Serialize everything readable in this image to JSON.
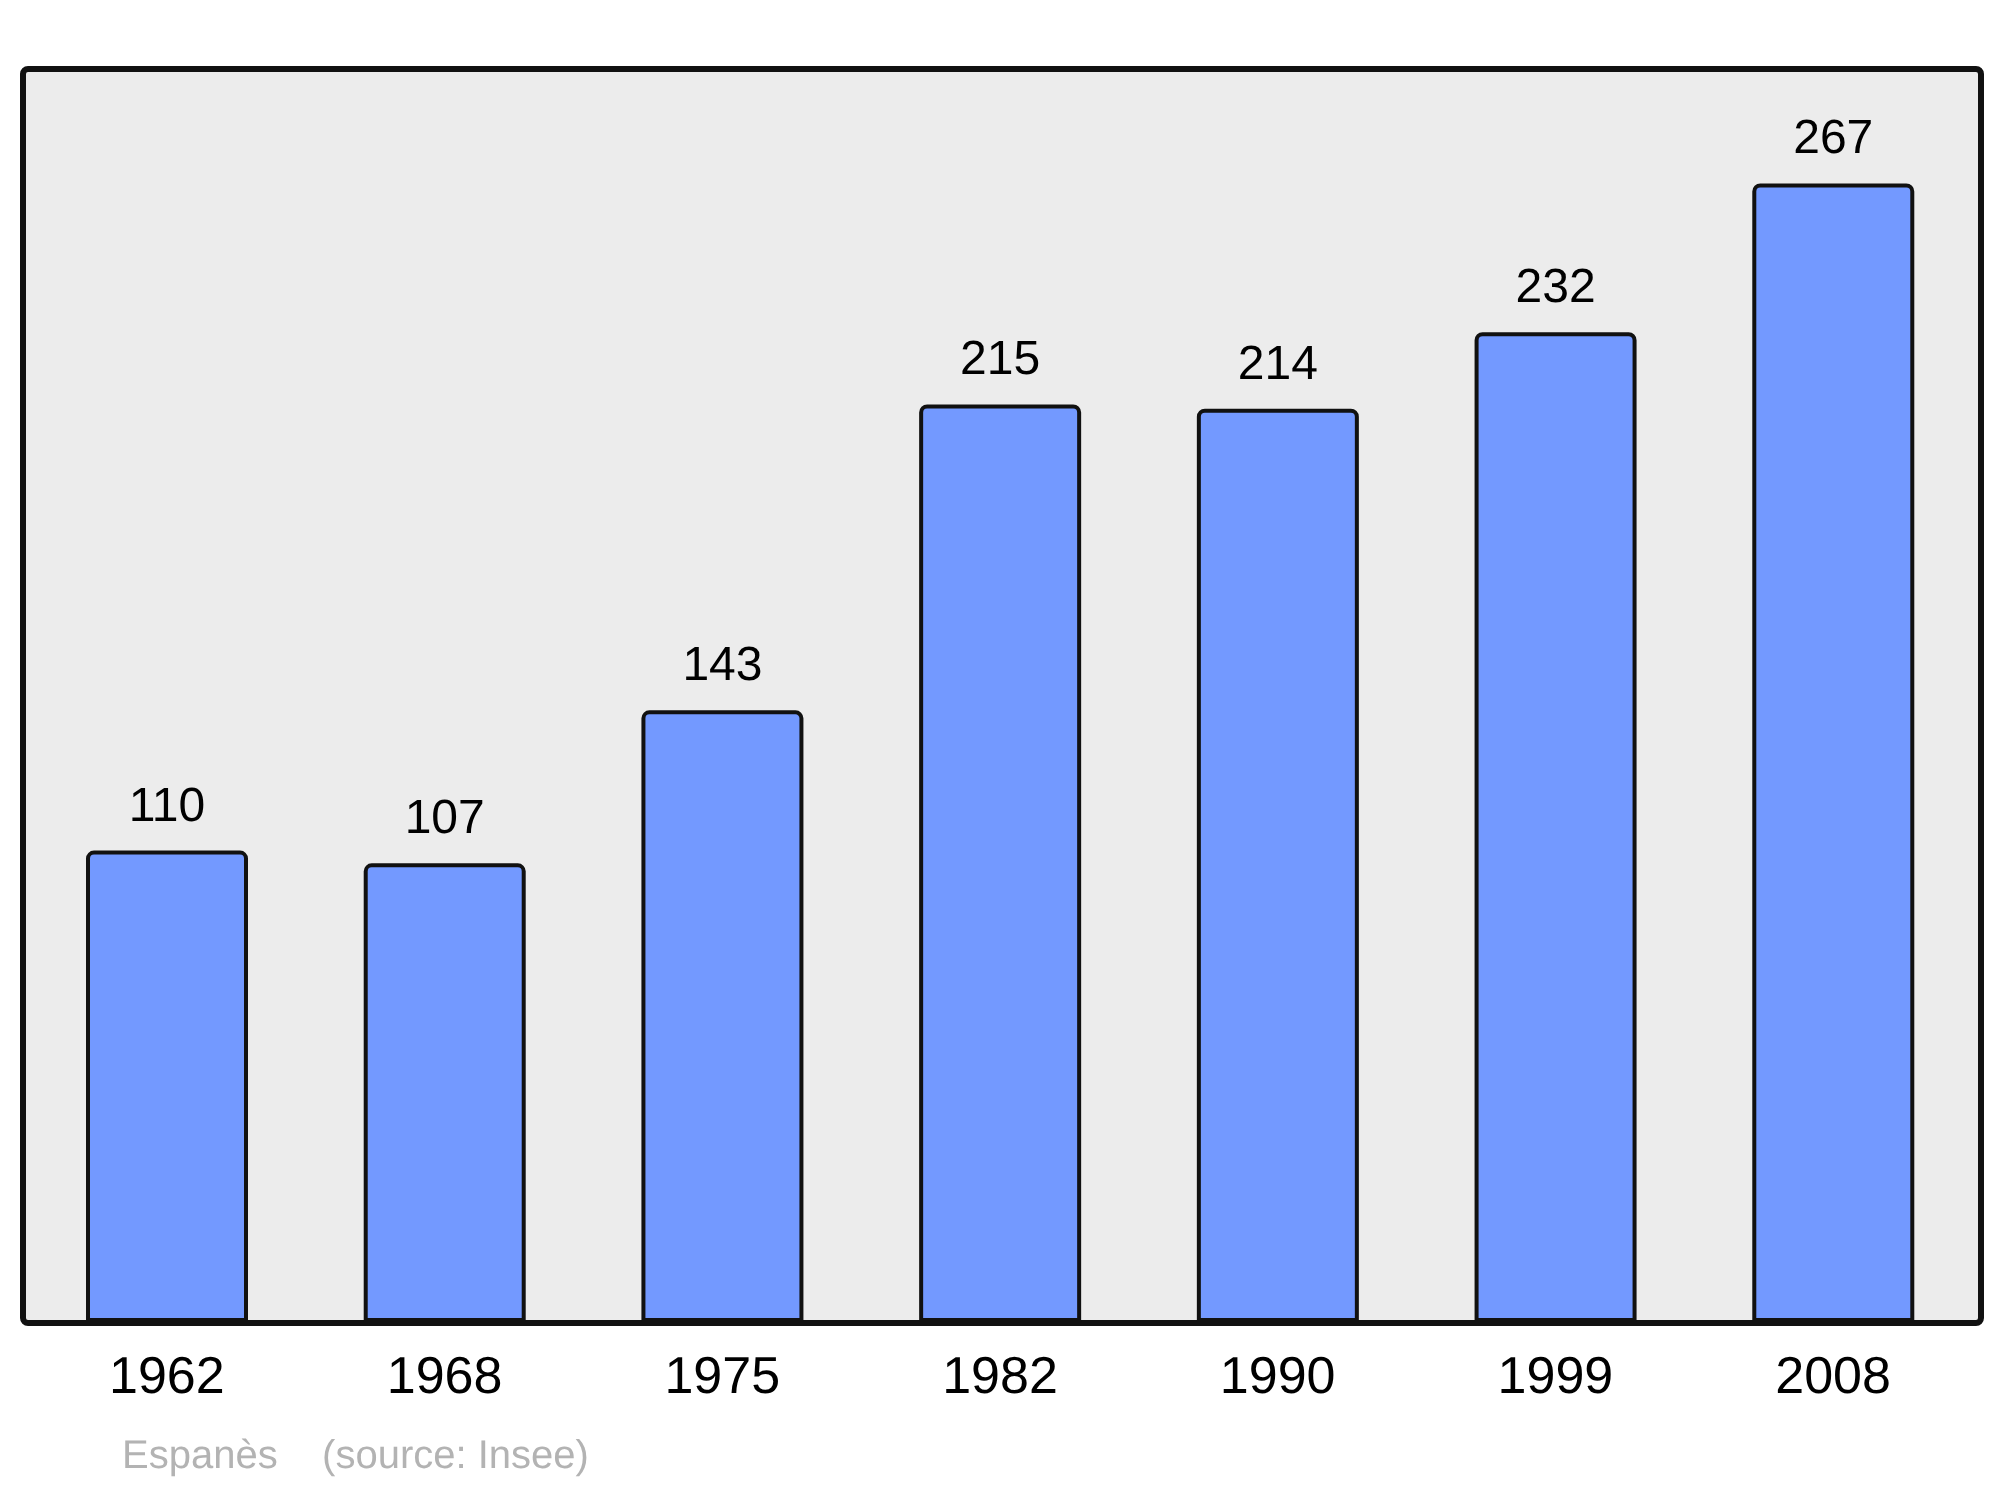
{
  "chart_data": {
    "type": "bar",
    "categories": [
      "1962",
      "1968",
      "1975",
      "1982",
      "1990",
      "1999",
      "2008"
    ],
    "values": [
      110,
      107,
      143,
      215,
      214,
      232,
      267
    ],
    "color": "#7399ff",
    "data_labels": true,
    "annotations": [
      "Espanès    (source: Insee)"
    ]
  }
}
